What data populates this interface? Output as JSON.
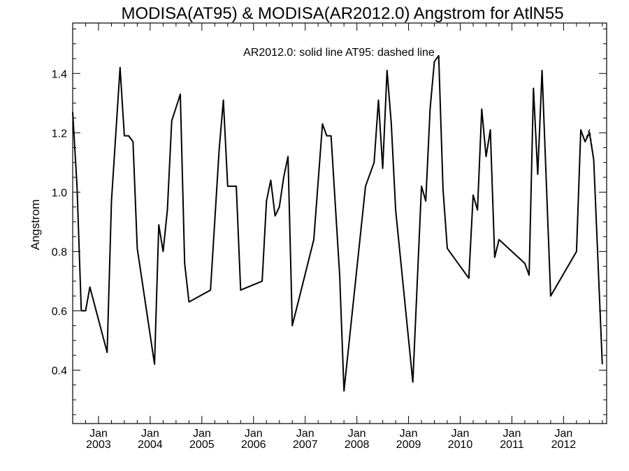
{
  "chart_data": {
    "type": "line",
    "title": "MODISA(AT95) & MODISA(AR2012.0)  Angstrom for AtlN55",
    "annotation": "AR2012.0: solid line   AT95: dashed line",
    "xlabel": "",
    "ylabel": "Angstrom",
    "xlim": [
      "2002-07",
      "2012-11"
    ],
    "ylim": [
      0.22,
      1.57
    ],
    "yticks": [
      "0.4",
      "0.6",
      "0.8",
      "1.0",
      "1.2",
      "1.4"
    ],
    "xticks": [
      {
        "month": "Jan",
        "year": "2003",
        "date": "2003-01"
      },
      {
        "month": "Jan",
        "year": "2004",
        "date": "2004-01"
      },
      {
        "month": "Jan",
        "year": "2005",
        "date": "2005-01"
      },
      {
        "month": "Jan",
        "year": "2006",
        "date": "2006-01"
      },
      {
        "month": "Jan",
        "year": "2007",
        "date": "2007-01"
      },
      {
        "month": "Jan",
        "year": "2008",
        "date": "2008-01"
      },
      {
        "month": "Jan",
        "year": "2009",
        "date": "2009-01"
      },
      {
        "month": "Jan",
        "year": "2010",
        "date": "2010-01"
      },
      {
        "month": "Jan",
        "year": "2011",
        "date": "2011-01"
      },
      {
        "month": "Jan",
        "year": "2012",
        "date": "2012-01"
      }
    ],
    "grid": false,
    "series": [
      {
        "name": "AR2012.0",
        "style": "solid",
        "color": "#000000",
        "points": [
          [
            "2002-07",
            1.27
          ],
          [
            "2002-08",
            1.02
          ],
          [
            "2002-09",
            0.6
          ],
          [
            "2002-10",
            0.6
          ],
          [
            "2002-11",
            0.68
          ],
          [
            "2003-03",
            0.46
          ],
          [
            "2003-04",
            0.97
          ],
          [
            "2003-06",
            1.42
          ],
          [
            "2003-07",
            1.19
          ],
          [
            "2003-08",
            1.19
          ],
          [
            "2003-09",
            1.17
          ],
          [
            "2003-10",
            0.81
          ],
          [
            "2004-02",
            0.42
          ],
          [
            "2004-03",
            0.89
          ],
          [
            "2004-04",
            0.8
          ],
          [
            "2004-05",
            0.94
          ],
          [
            "2004-06",
            1.24
          ],
          [
            "2004-08",
            1.33
          ],
          [
            "2004-09",
            0.76
          ],
          [
            "2004-10",
            0.63
          ],
          [
            "2005-03",
            0.67
          ],
          [
            "2005-05",
            1.14
          ],
          [
            "2005-06",
            1.31
          ],
          [
            "2005-07",
            1.02
          ],
          [
            "2005-09",
            1.02
          ],
          [
            "2005-10",
            0.67
          ],
          [
            "2006-03",
            0.7
          ],
          [
            "2006-04",
            0.97
          ],
          [
            "2006-05",
            1.04
          ],
          [
            "2006-06",
            0.92
          ],
          [
            "2006-07",
            0.95
          ],
          [
            "2006-08",
            1.05
          ],
          [
            "2006-09",
            1.12
          ],
          [
            "2006-10",
            0.55
          ],
          [
            "2007-03",
            0.84
          ],
          [
            "2007-05",
            1.23
          ],
          [
            "2007-06",
            1.19
          ],
          [
            "2007-07",
            1.19
          ],
          [
            "2007-09",
            0.72
          ],
          [
            "2007-10",
            0.33
          ],
          [
            "2008-03",
            1.02
          ],
          [
            "2008-05",
            1.1
          ],
          [
            "2008-06",
            1.31
          ],
          [
            "2008-07",
            1.08
          ],
          [
            "2008-08",
            1.41
          ],
          [
            "2008-09",
            1.23
          ],
          [
            "2008-10",
            0.94
          ],
          [
            "2009-02",
            0.36
          ],
          [
            "2009-04",
            1.02
          ],
          [
            "2009-05",
            0.97
          ],
          [
            "2009-06",
            1.28
          ],
          [
            "2009-07",
            1.44
          ],
          [
            "2009-08",
            1.46
          ],
          [
            "2009-09",
            1.01
          ],
          [
            "2009-10",
            0.81
          ],
          [
            "2010-03",
            0.71
          ],
          [
            "2010-04",
            0.99
          ],
          [
            "2010-05",
            0.94
          ],
          [
            "2010-06",
            1.28
          ],
          [
            "2010-07",
            1.12
          ],
          [
            "2010-08",
            1.21
          ],
          [
            "2010-09",
            0.78
          ],
          [
            "2010-10",
            0.84
          ],
          [
            "2011-04",
            0.76
          ],
          [
            "2011-05",
            0.72
          ],
          [
            "2011-06",
            1.35
          ],
          [
            "2011-07",
            1.06
          ],
          [
            "2011-08",
            1.41
          ],
          [
            "2011-10",
            0.65
          ],
          [
            "2012-04",
            0.8
          ],
          [
            "2012-05",
            1.21
          ],
          [
            "2012-06",
            1.17
          ],
          [
            "2012-07",
            1.2
          ],
          [
            "2012-08",
            1.11
          ],
          [
            "2012-10",
            0.42
          ]
        ]
      },
      {
        "name": "AT95",
        "style": "dashed",
        "color": "#000000",
        "points": [
          [
            "2011-10",
            0.65
          ],
          [
            "2012-04",
            0.8
          ],
          [
            "2012-05",
            1.21
          ],
          [
            "2012-06",
            1.17
          ],
          [
            "2012-07",
            1.21
          ],
          [
            "2012-08",
            1.11
          ]
        ]
      }
    ]
  }
}
